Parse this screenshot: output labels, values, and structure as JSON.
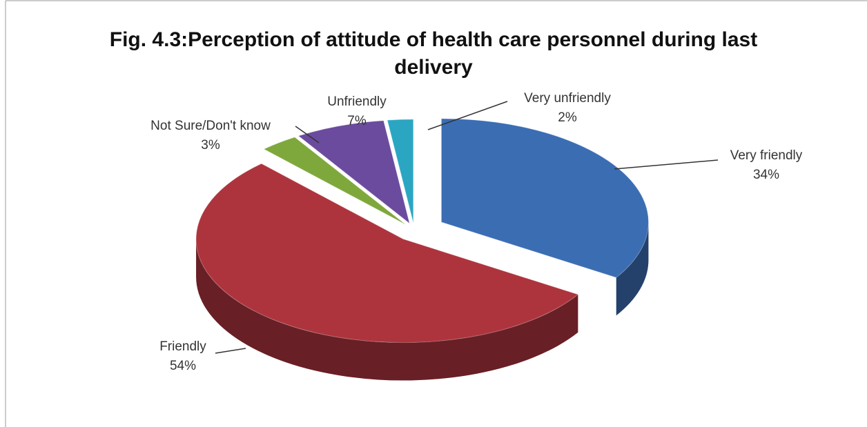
{
  "chart_data": {
    "type": "pie",
    "title": "Fig. 4.3:Perception of attitude of health care personnel during last delivery",
    "categories": [
      "Very friendly",
      "Friendly",
      "Not Sure/Don't know",
      "Unfriendly",
      "Very unfriendly"
    ],
    "values": [
      34,
      54,
      3,
      7,
      2
    ],
    "value_labels": [
      "34%",
      "54%",
      "3%",
      "7%",
      "2%"
    ],
    "colors": [
      "#3b6db3",
      "#ad343d",
      "#7fa83c",
      "#6b4b9e",
      "#2ba6c2"
    ]
  }
}
